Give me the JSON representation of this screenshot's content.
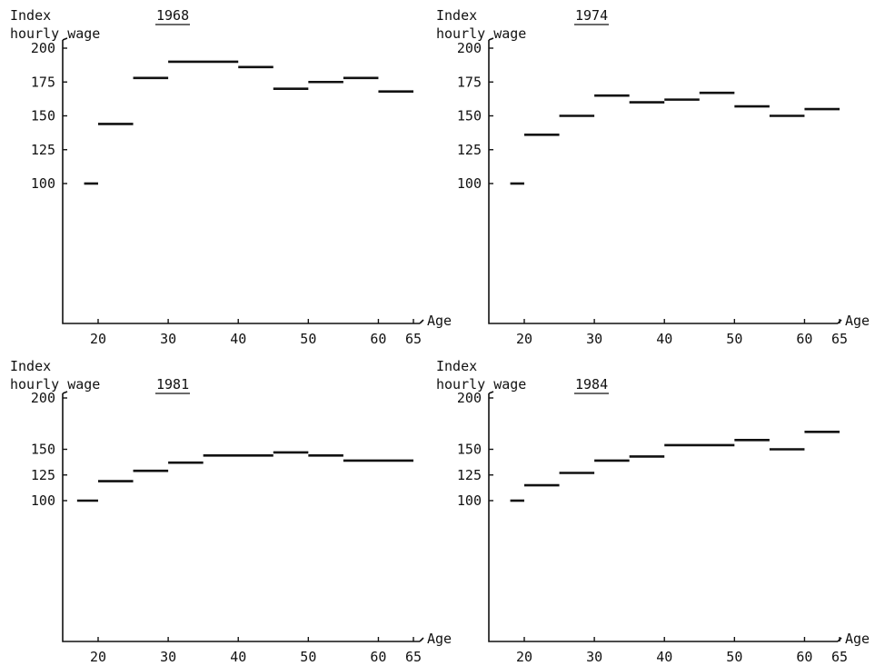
{
  "chart_data": [
    {
      "type": "line",
      "title": "1968",
      "ylabel_line1": "Index",
      "ylabel_line2": "hourly wage",
      "xlabel": "Age",
      "ylim": [
        0,
        200
      ],
      "yticks": [
        100,
        125,
        150,
        175,
        200
      ],
      "xticks": [
        20,
        30,
        40,
        50,
        60,
        65
      ],
      "series": [
        {
          "segments": [
            {
              "x": [
                18,
                20
              ],
              "y": 100
            },
            {
              "x": [
                20,
                25
              ],
              "y": 144
            },
            {
              "x": [
                25,
                30
              ],
              "y": 178
            },
            {
              "x": [
                30,
                40
              ],
              "y": 190
            },
            {
              "x": [
                40,
                45
              ],
              "y": 186
            },
            {
              "x": [
                45,
                50
              ],
              "y": 170
            },
            {
              "x": [
                50,
                55
              ],
              "y": 175
            },
            {
              "x": [
                55,
                60
              ],
              "y": 178
            },
            {
              "x": [
                60,
                65
              ],
              "y": 168
            }
          ]
        }
      ]
    },
    {
      "type": "line",
      "title": "1974",
      "ylabel_line1": "Index",
      "ylabel_line2": "hourly wage",
      "xlabel": "Age",
      "ylim": [
        0,
        200
      ],
      "yticks": [
        100,
        125,
        150,
        175,
        200
      ],
      "xticks": [
        20,
        30,
        40,
        50,
        60,
        65
      ],
      "series": [
        {
          "segments": [
            {
              "x": [
                18,
                20
              ],
              "y": 100
            },
            {
              "x": [
                20,
                25
              ],
              "y": 136
            },
            {
              "x": [
                25,
                30
              ],
              "y": 150
            },
            {
              "x": [
                30,
                35
              ],
              "y": 165
            },
            {
              "x": [
                35,
                40
              ],
              "y": 160
            },
            {
              "x": [
                40,
                45
              ],
              "y": 162
            },
            {
              "x": [
                45,
                50
              ],
              "y": 167
            },
            {
              "x": [
                50,
                55
              ],
              "y": 157
            },
            {
              "x": [
                55,
                60
              ],
              "y": 150
            },
            {
              "x": [
                60,
                65
              ],
              "y": 155
            }
          ]
        }
      ]
    },
    {
      "type": "line",
      "title": "1981",
      "ylabel_line1": "Index",
      "ylabel_line2": "hourly wage",
      "xlabel": "Age",
      "ylim": [
        0,
        200
      ],
      "yticks": [
        100,
        125,
        150,
        200
      ],
      "xticks": [
        20,
        30,
        40,
        50,
        60,
        65
      ],
      "series": [
        {
          "segments": [
            {
              "x": [
                17,
                20
              ],
              "y": 100
            },
            {
              "x": [
                20,
                25
              ],
              "y": 119
            },
            {
              "x": [
                25,
                30
              ],
              "y": 129
            },
            {
              "x": [
                30,
                35
              ],
              "y": 137
            },
            {
              "x": [
                35,
                45
              ],
              "y": 144
            },
            {
              "x": [
                45,
                50
              ],
              "y": 147
            },
            {
              "x": [
                50,
                55
              ],
              "y": 144
            },
            {
              "x": [
                55,
                65
              ],
              "y": 139
            }
          ]
        }
      ]
    },
    {
      "type": "line",
      "title": "1984",
      "ylabel_line1": "Index",
      "ylabel_line2": "hourly wage",
      "xlabel": "Age",
      "ylim": [
        0,
        200
      ],
      "yticks": [
        100,
        125,
        150,
        200
      ],
      "xticks": [
        20,
        30,
        40,
        50,
        60,
        65
      ],
      "series": [
        {
          "segments": [
            {
              "x": [
                18,
                20
              ],
              "y": 100
            },
            {
              "x": [
                20,
                25
              ],
              "y": 115
            },
            {
              "x": [
                25,
                30
              ],
              "y": 127
            },
            {
              "x": [
                30,
                35
              ],
              "y": 139
            },
            {
              "x": [
                35,
                40
              ],
              "y": 143
            },
            {
              "x": [
                40,
                50
              ],
              "y": 154
            },
            {
              "x": [
                50,
                55
              ],
              "y": 159
            },
            {
              "x": [
                55,
                60
              ],
              "y": 150
            },
            {
              "x": [
                60,
                65
              ],
              "y": 167
            }
          ]
        }
      ]
    }
  ]
}
